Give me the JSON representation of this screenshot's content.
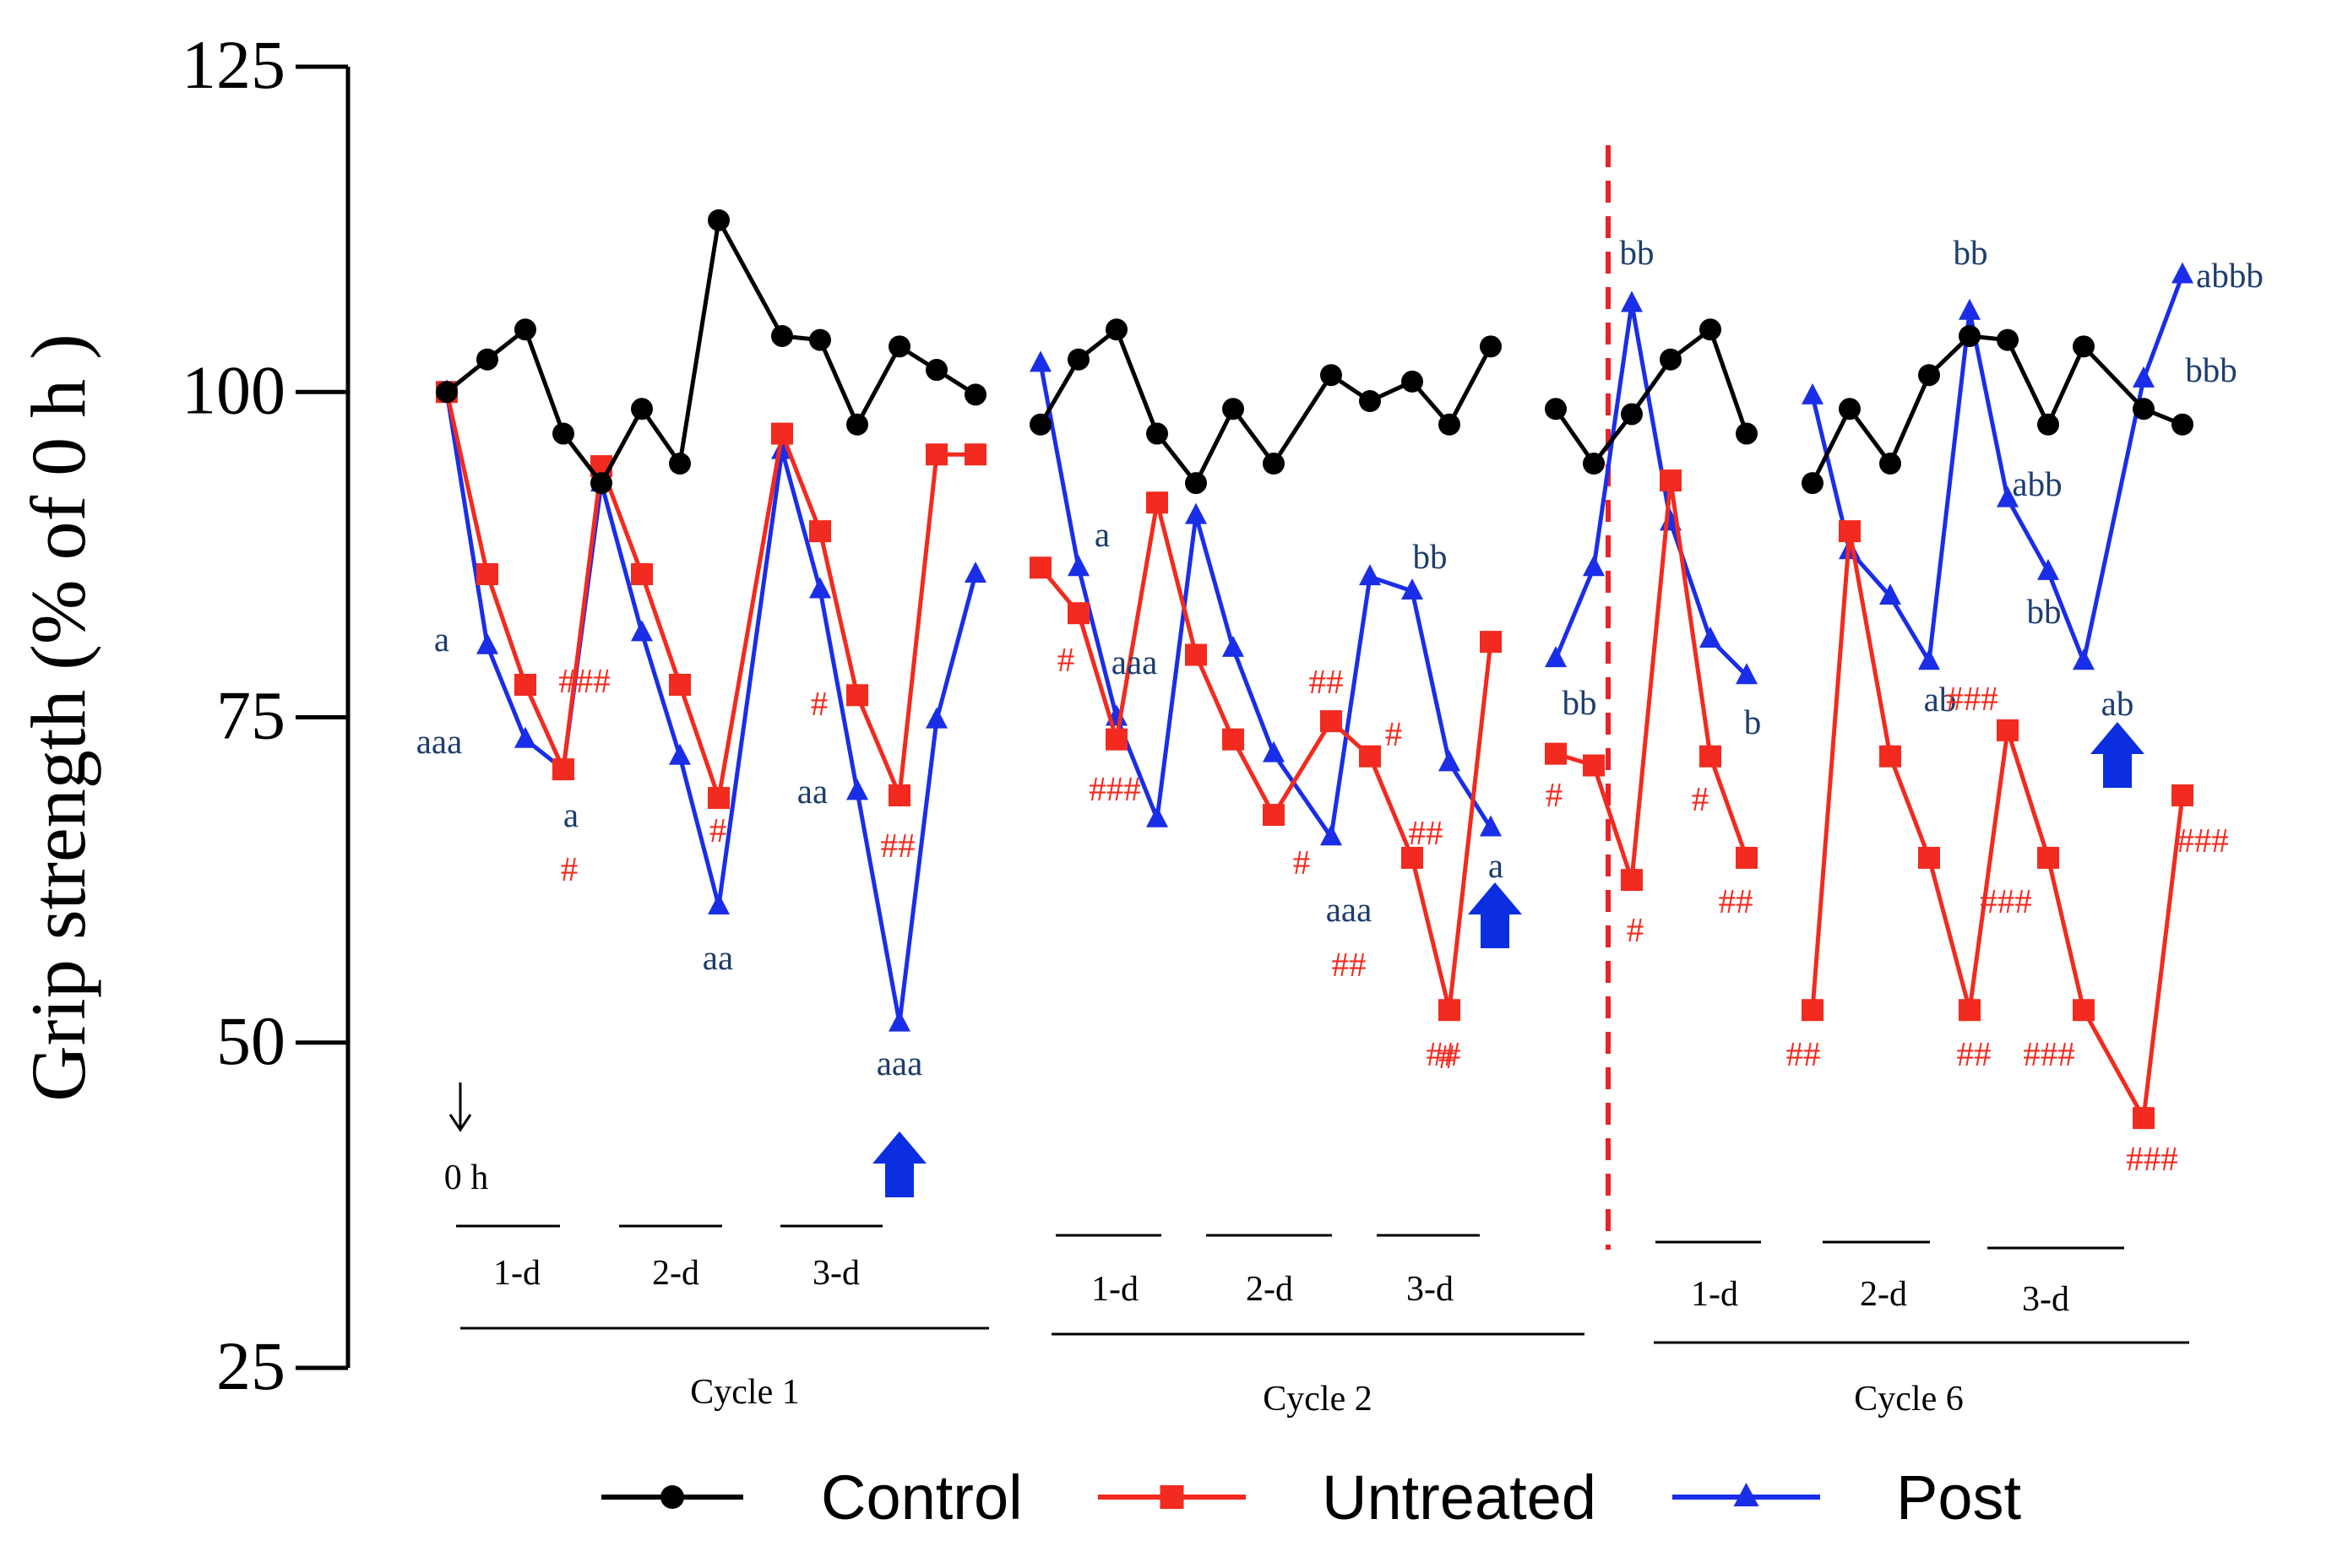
{
  "colors": {
    "control": "#000000",
    "untreated": "#f22a1f",
    "post": "#1a2ee8",
    "post_annotation": "#1c3d6e",
    "untreated_annotation": "#f22a1f",
    "arrow": "#0a2ee0",
    "cycle_divider": "#e8232a"
  },
  "chart_data": {
    "type": "line",
    "ylabel": "Grip strength (% of 0 h )",
    "ylim": [
      25,
      125
    ],
    "yticks": [
      25,
      50,
      75,
      100,
      125
    ],
    "ytick_labels": [
      "25",
      "50",
      "75",
      "100",
      "125"
    ],
    "x": [
      0,
      1,
      2,
      3,
      4,
      5,
      6,
      7,
      8,
      9,
      10,
      11,
      12,
      13,
      14,
      15,
      16,
      17,
      18,
      19,
      20,
      21,
      22,
      23,
      24,
      25,
      26,
      27,
      28,
      29,
      30,
      31,
      32,
      33,
      34,
      35,
      36,
      37,
      38,
      39,
      40,
      41,
      42,
      43,
      44,
      45,
      46
    ],
    "series": [
      {
        "name": "Control",
        "marker": "circle",
        "values": [
          100,
          102.5,
          104.8,
          96.8,
          93,
          98.7,
          94.5,
          113.2,
          104.3,
          104,
          97.5,
          103.5,
          101.7,
          99.8,
          null,
          97.5,
          102.5,
          104.8,
          96.8,
          93,
          98.7,
          94.5,
          101.3,
          99.3,
          100.8,
          97.5,
          103.5,
          null,
          98.7,
          94.5,
          98.3,
          102.5,
          104.8,
          96.8,
          null,
          93,
          98.7,
          94.5,
          101.3,
          104.3,
          104,
          97.5,
          103.5,
          98.7,
          97.5,
          null,
          null
        ]
      },
      {
        "name": "Untreated",
        "marker": "square",
        "values": [
          100,
          86,
          77.5,
          71,
          94.3,
          86,
          77.5,
          68.8,
          96.8,
          89.3,
          76.7,
          69,
          95.2,
          95.2,
          null,
          86.5,
          83,
          73.3,
          91.5,
          79.8,
          73.3,
          67.5,
          74.7,
          72,
          64.2,
          52.5,
          80.8,
          null,
          72.2,
          71.3,
          62.5,
          93.2,
          72,
          64.2,
          null,
          52.5,
          89.3,
          72,
          64.2,
          52.5,
          74,
          64.2,
          52.5,
          44.2,
          69,
          null,
          null
        ]
      },
      {
        "name": "Post",
        "marker": "triangle",
        "values": [
          100,
          80.5,
          73.3,
          71,
          93,
          81.5,
          72,
          60.5,
          95.5,
          84.8,
          69.3,
          51.5,
          74.8,
          86,
          null,
          102.2,
          86.5,
          75,
          67.2,
          90.5,
          80.3,
          72.2,
          65.8,
          85.8,
          84.7,
          71.5,
          66.5,
          null,
          79.5,
          86.5,
          106.8,
          90,
          81,
          78.2,
          null,
          99.7,
          87.8,
          84.3,
          79.3,
          106.2,
          91.8,
          86.2,
          79.3,
          101,
          109,
          null,
          null
        ]
      }
    ],
    "annotations": {
      "post": [
        "a",
        "aaa",
        "a",
        "aa",
        "aa",
        "aaa",
        "a",
        "aaa",
        "aaa",
        "bb",
        "a",
        "bb",
        "bb",
        "b",
        "bb",
        "ab",
        "abb",
        "bb",
        "ab",
        "abbb",
        "bbb"
      ],
      "untreated": [
        "###",
        "#",
        "#",
        "#",
        "##",
        "#",
        "###",
        "##",
        "#",
        "#",
        "##",
        "##",
        "#",
        "#",
        "#",
        "#",
        "##",
        "##",
        "##",
        "###",
        "##",
        "###",
        "###",
        "###",
        "###"
      ]
    },
    "start_marker_label": "0 h",
    "day_labels": [
      "1-d",
      "2-d",
      "3-d",
      "1-d",
      "2-d",
      "3-d",
      "1-d",
      "2-d",
      "3-d"
    ],
    "cycle_labels": [
      "Cycle 1",
      "Cycle 2",
      "Cycle 6"
    ],
    "legend": [
      "Control",
      "Untreated",
      "Post"
    ],
    "legend_position": "bottom"
  }
}
